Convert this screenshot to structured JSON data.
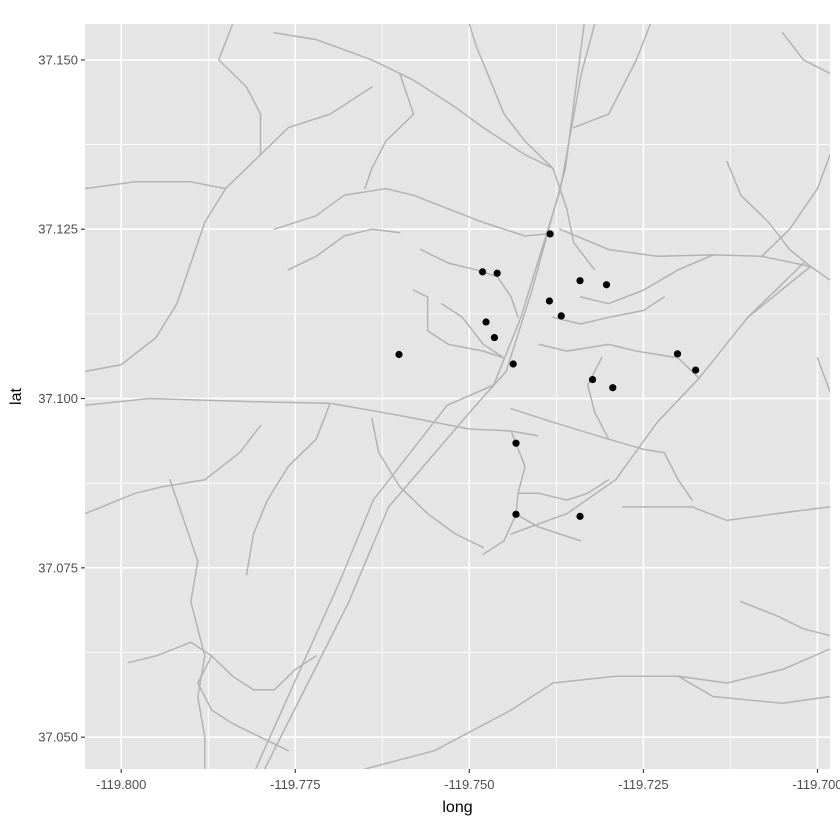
{
  "chart_data": {
    "type": "scatter",
    "xlabel": "long",
    "ylabel": "lat",
    "xlim": [
      -119.8052,
      -119.6982
    ],
    "ylim": [
      37.0453,
      37.1553
    ],
    "x_ticks": [
      -119.8,
      -119.775,
      -119.75,
      -119.725,
      -119.7
    ],
    "x_tick_labels": [
      "-119.800",
      "-119.775",
      "-119.750",
      "-119.725",
      "-119.700"
    ],
    "y_ticks": [
      37.05,
      37.075,
      37.1,
      37.125,
      37.15
    ],
    "y_tick_labels": [
      "37.050",
      "37.075",
      "37.100",
      "37.125",
      "37.150"
    ],
    "grid": true,
    "colors": {
      "panel": "#e5e5e5",
      "grid_major": "#ffffff",
      "roads": "#b3b3b3",
      "points": "#000000"
    },
    "points": [
      {
        "x": -119.7601,
        "y": 37.1065
      },
      {
        "x": -119.7481,
        "y": 37.1187
      },
      {
        "x": -119.746,
        "y": 37.1185
      },
      {
        "x": -119.7476,
        "y": 37.1113
      },
      {
        "x": -119.7464,
        "y": 37.109
      },
      {
        "x": -119.7437,
        "y": 37.1051
      },
      {
        "x": -119.7384,
        "y": 37.1243
      },
      {
        "x": -119.7385,
        "y": 37.1144
      },
      {
        "x": -119.7368,
        "y": 37.1122
      },
      {
        "x": -119.7341,
        "y": 37.1174
      },
      {
        "x": -119.7303,
        "y": 37.1168
      },
      {
        "x": -119.7323,
        "y": 37.1028
      },
      {
        "x": -119.7294,
        "y": 37.1016
      },
      {
        "x": -119.7201,
        "y": 37.1066
      },
      {
        "x": -119.7175,
        "y": 37.1042
      },
      {
        "x": -119.7433,
        "y": 37.0934
      },
      {
        "x": -119.7433,
        "y": 37.0829
      },
      {
        "x": -119.7341,
        "y": 37.0826
      }
    ],
    "roads": [
      [
        [
          -119.7807,
          37.0453
        ],
        [
          -119.7686,
          37.073
        ],
        [
          -119.7638,
          37.085
        ],
        [
          -119.7532,
          37.099
        ],
        [
          -119.7465,
          37.102
        ],
        [
          -119.7426,
          37.112
        ],
        [
          -119.7369,
          37.131
        ],
        [
          -119.7339,
          37.148
        ],
        [
          -119.732,
          37.1553
        ]
      ],
      [
        [
          -119.7794,
          37.0453
        ],
        [
          -119.7673,
          37.07
        ],
        [
          -119.7616,
          37.084
        ],
        [
          -119.7495,
          37.0985
        ],
        [
          -119.7447,
          37.104
        ],
        [
          -119.741,
          37.116
        ],
        [
          -119.7362,
          37.134
        ],
        [
          -119.7335,
          37.1553
        ]
      ],
      [
        [
          -119.8052,
          37.099
        ],
        [
          -119.796,
          37.1
        ],
        [
          -119.78,
          37.0995
        ],
        [
          -119.77,
          37.0993
        ],
        [
          -119.76,
          37.0975
        ],
        [
          -119.75,
          37.0955
        ],
        [
          -119.744,
          37.0952
        ],
        [
          -119.7402,
          37.0945
        ]
      ],
      [
        [
          -119.744,
          37.0985
        ],
        [
          -119.738,
          37.0965
        ],
        [
          -119.73,
          37.094
        ],
        [
          -119.725,
          37.0925
        ],
        [
          -119.722,
          37.092
        ]
      ],
      [
        [
          -119.737,
          37.125
        ],
        [
          -119.73,
          37.122
        ],
        [
          -119.723,
          37.121
        ],
        [
          -119.715,
          37.1212
        ],
        [
          -119.708,
          37.121
        ],
        [
          -119.701,
          37.1195
        ],
        [
          -119.6982,
          37.1175
        ]
      ],
      [
        [
          -119.701,
          37.1195
        ],
        [
          -119.71,
          37.112
        ],
        [
          -119.717,
          37.103
        ],
        [
          -119.723,
          37.0965
        ],
        [
          -119.729,
          37.088
        ],
        [
          -119.736,
          37.083
        ],
        [
          -119.744,
          37.08
        ]
      ],
      [
        [
          -119.778,
          37.154
        ],
        [
          -119.772,
          37.153
        ],
        [
          -119.764,
          37.15
        ],
        [
          -119.758,
          37.147
        ],
        [
          -119.752,
          37.143
        ],
        [
          -119.748,
          37.14
        ],
        [
          -119.742,
          37.136
        ],
        [
          -119.738,
          37.134
        ]
      ],
      [
        [
          -119.765,
          37.0453
        ],
        [
          -119.755,
          37.048
        ],
        [
          -119.744,
          37.054
        ],
        [
          -119.738,
          37.058
        ],
        [
          -119.729,
          37.059
        ],
        [
          -119.72,
          37.059
        ],
        [
          -119.713,
          37.058
        ],
        [
          -119.705,
          37.06
        ],
        [
          -119.6982,
          37.063
        ]
      ],
      [
        [
          -119.72,
          37.059
        ],
        [
          -119.715,
          37.056
        ],
        [
          -119.705,
          37.055
        ],
        [
          -119.6982,
          37.056
        ]
      ],
      [
        [
          -119.8052,
          37.083
        ],
        [
          -119.798,
          37.086
        ],
        [
          -119.794,
          37.087
        ],
        [
          -119.788,
          37.088
        ],
        [
          -119.783,
          37.092
        ],
        [
          -119.78,
          37.096
        ]
      ],
      [
        [
          -119.793,
          37.088
        ],
        [
          -119.791,
          37.082
        ],
        [
          -119.789,
          37.076
        ],
        [
          -119.79,
          37.07
        ],
        [
          -119.788,
          37.062
        ],
        [
          -119.789,
          37.056
        ],
        [
          -119.788,
          37.05
        ],
        [
          -119.788,
          37.0453
        ]
      ],
      [
        [
          -119.77,
          37.0993
        ],
        [
          -119.772,
          37.094
        ],
        [
          -119.776,
          37.09
        ],
        [
          -119.779,
          37.085
        ],
        [
          -119.781,
          37.08
        ],
        [
          -119.782,
          37.074
        ]
      ],
      [
        [
          -119.764,
          37.097
        ],
        [
          -119.763,
          37.092
        ],
        [
          -119.76,
          37.087
        ],
        [
          -119.756,
          37.083
        ],
        [
          -119.752,
          37.08
        ],
        [
          -119.748,
          37.078
        ]
      ],
      [
        [
          -119.8052,
          37.131
        ],
        [
          -119.798,
          37.132
        ],
        [
          -119.79,
          37.132
        ],
        [
          -119.785,
          37.131
        ],
        [
          -119.78,
          37.136
        ],
        [
          -119.776,
          37.14
        ],
        [
          -119.77,
          37.142
        ],
        [
          -119.764,
          37.146
        ]
      ],
      [
        [
          -119.778,
          37.125
        ],
        [
          -119.772,
          37.127
        ],
        [
          -119.768,
          37.13
        ],
        [
          -119.762,
          37.131
        ],
        [
          -119.758,
          37.13
        ],
        [
          -119.753,
          37.128
        ],
        [
          -119.748,
          37.126
        ],
        [
          -119.742,
          37.124
        ],
        [
          -119.739,
          37.1243
        ]
      ],
      [
        [
          -119.776,
          37.119
        ],
        [
          -119.772,
          37.121
        ],
        [
          -119.768,
          37.124
        ],
        [
          -119.764,
          37.125
        ],
        [
          -119.76,
          37.1245
        ]
      ],
      [
        [
          -119.758,
          37.116
        ],
        [
          -119.756,
          37.115
        ],
        [
          -119.756,
          37.11
        ],
        [
          -119.753,
          37.108
        ],
        [
          -119.748,
          37.107
        ],
        [
          -119.745,
          37.106
        ]
      ],
      [
        [
          -119.757,
          37.122
        ],
        [
          -119.753,
          37.12
        ],
        [
          -119.749,
          37.119
        ],
        [
          -119.746,
          37.118
        ],
        [
          -119.744,
          37.115
        ],
        [
          -119.743,
          37.112
        ]
      ],
      [
        [
          -119.738,
          37.134
        ],
        [
          -119.742,
          37.138
        ],
        [
          -119.745,
          37.142
        ],
        [
          -119.747,
          37.147
        ],
        [
          -119.749,
          37.152
        ],
        [
          -119.75,
          37.1553
        ]
      ],
      [
        [
          -119.735,
          37.14
        ],
        [
          -119.73,
          37.142
        ],
        [
          -119.728,
          37.146
        ],
        [
          -119.726,
          37.15
        ],
        [
          -119.724,
          37.1553
        ]
      ],
      [
        [
          -119.734,
          37.115
        ],
        [
          -119.73,
          37.114
        ],
        [
          -119.725,
          37.116
        ],
        [
          -119.72,
          37.119
        ],
        [
          -119.715,
          37.1212
        ]
      ],
      [
        [
          -119.74,
          37.108
        ],
        [
          -119.736,
          37.107
        ],
        [
          -119.73,
          37.108
        ],
        [
          -119.726,
          37.107
        ],
        [
          -119.72,
          37.106
        ],
        [
          -119.717,
          37.103
        ]
      ],
      [
        [
          -119.738,
          37.112
        ],
        [
          -119.734,
          37.111
        ],
        [
          -119.73,
          37.112
        ],
        [
          -119.725,
          37.113
        ],
        [
          -119.722,
          37.115
        ]
      ],
      [
        [
          -119.73,
          37.094
        ],
        [
          -119.732,
          37.098
        ],
        [
          -119.733,
          37.102
        ],
        [
          -119.731,
          37.106
        ]
      ],
      [
        [
          -119.744,
          37.0952
        ],
        [
          -119.742,
          37.09
        ],
        [
          -119.743,
          37.086
        ],
        [
          -119.7433,
          37.0829
        ],
        [
          -119.745,
          37.079
        ],
        [
          -119.748,
          37.077
        ]
      ],
      [
        [
          -119.743,
          37.086
        ],
        [
          -119.74,
          37.086
        ],
        [
          -119.736,
          37.085
        ],
        [
          -119.733,
          37.086
        ],
        [
          -119.73,
          37.088
        ]
      ],
      [
        [
          -119.7433,
          37.0829
        ],
        [
          -119.74,
          37.081
        ],
        [
          -119.737,
          37.08
        ],
        [
          -119.734,
          37.079
        ]
      ],
      [
        [
          -119.728,
          37.084
        ],
        [
          -119.724,
          37.084
        ],
        [
          -119.718,
          37.084
        ],
        [
          -119.713,
          37.082
        ],
        [
          -119.706,
          37.083
        ],
        [
          -119.6982,
          37.084
        ]
      ],
      [
        [
          -119.71,
          37.112
        ],
        [
          -119.706,
          37.116
        ],
        [
          -119.702,
          37.12
        ]
      ],
      [
        [
          -119.713,
          37.135
        ],
        [
          -119.711,
          37.13
        ],
        [
          -119.707,
          37.126
        ],
        [
          -119.704,
          37.122
        ],
        [
          -119.701,
          37.1195
        ]
      ],
      [
        [
          -119.708,
          37.121
        ],
        [
          -119.704,
          37.125
        ],
        [
          -119.7,
          37.131
        ],
        [
          -119.6982,
          37.136
        ]
      ],
      [
        [
          -119.705,
          37.154
        ],
        [
          -119.702,
          37.15
        ],
        [
          -119.6982,
          37.148
        ]
      ],
      [
        [
          -119.76,
          37.148
        ],
        [
          -119.758,
          37.142
        ],
        [
          -119.762,
          37.138
        ],
        [
          -119.764,
          37.134
        ],
        [
          -119.765,
          37.131
        ]
      ],
      [
        [
          -119.784,
          37.1553
        ],
        [
          -119.786,
          37.15
        ],
        [
          -119.782,
          37.146
        ],
        [
          -119.78,
          37.142
        ],
        [
          -119.78,
          37.136
        ]
      ],
      [
        [
          -119.785,
          37.131
        ],
        [
          -119.788,
          37.126
        ],
        [
          -119.79,
          37.12
        ],
        [
          -119.792,
          37.114
        ],
        [
          -119.795,
          37.109
        ],
        [
          -119.8,
          37.105
        ],
        [
          -119.8052,
          37.104
        ]
      ],
      [
        [
          -119.799,
          37.061
        ],
        [
          -119.795,
          37.062
        ],
        [
          -119.79,
          37.064
        ],
        [
          -119.787,
          37.062
        ],
        [
          -119.784,
          37.059
        ],
        [
          -119.781,
          37.057
        ],
        [
          -119.778,
          37.057
        ],
        [
          -119.775,
          37.06
        ],
        [
          -119.772,
          37.062
        ]
      ],
      [
        [
          -119.787,
          37.062
        ],
        [
          -119.789,
          37.058
        ],
        [
          -119.787,
          37.054
        ],
        [
          -119.784,
          37.052
        ],
        [
          -119.78,
          37.05
        ],
        [
          -119.776,
          37.048
        ]
      ],
      [
        [
          -119.7,
          37.106
        ],
        [
          -119.6982,
          37.101
        ]
      ],
      [
        [
          -119.711,
          37.07
        ],
        [
          -119.706,
          37.068
        ],
        [
          -119.702,
          37.066
        ],
        [
          -119.6982,
          37.065
        ]
      ],
      [
        [
          -119.722,
          37.092
        ],
        [
          -119.72,
          37.088
        ],
        [
          -119.718,
          37.085
        ]
      ],
      [
        [
          -119.754,
          37.114
        ],
        [
          -119.751,
          37.112
        ],
        [
          -119.748,
          37.108
        ],
        [
          -119.745,
          37.106
        ]
      ],
      [
        [
          -119.738,
          37.134
        ],
        [
          -119.736,
          37.128
        ],
        [
          -119.735,
          37.123
        ],
        [
          -119.732,
          37.119
        ]
      ]
    ]
  }
}
